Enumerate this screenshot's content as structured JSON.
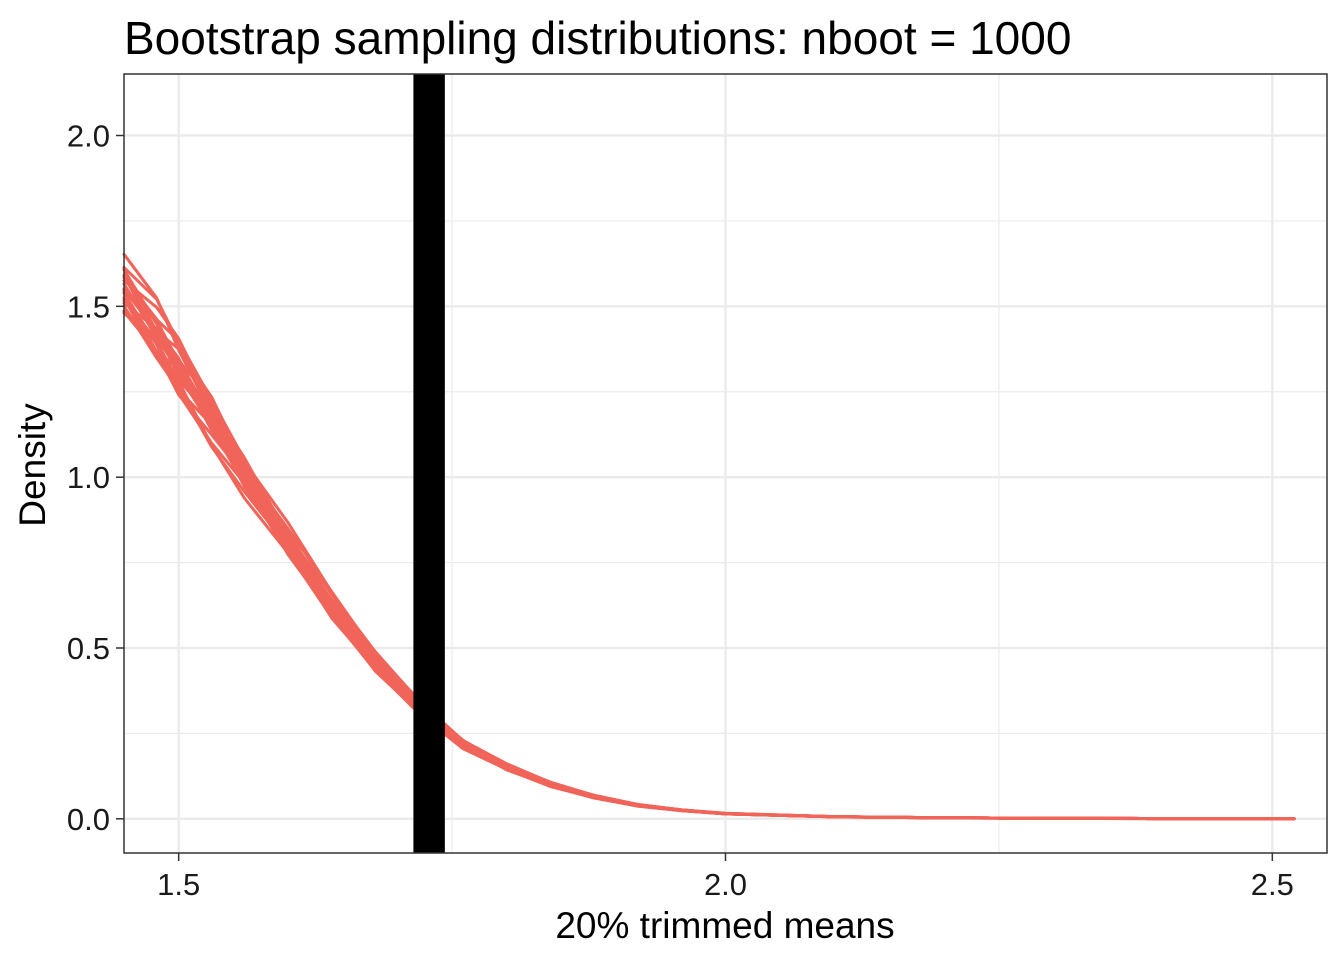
{
  "chart_data": {
    "type": "line",
    "title": "Bootstrap sampling distributions: nboot = 1000",
    "xlabel": "20% trimmed means",
    "ylabel": "Density",
    "xlim": [
      1.45,
      2.55
    ],
    "ylim": [
      -0.1,
      2.18
    ],
    "x_ticks": [
      1.5,
      2.0,
      2.5
    ],
    "x_tick_labels": [
      "1.5",
      "2.0",
      "2.5"
    ],
    "y_ticks": [
      0.0,
      0.5,
      1.0,
      1.5,
      2.0
    ],
    "y_tick_labels": [
      "0.0",
      "0.5",
      "1.0",
      "1.5",
      "2.0"
    ],
    "grid": true,
    "legend": "none",
    "colors": {
      "curves": "#f0645a",
      "vlines": "#000000",
      "grid": "#ebebeb",
      "panel_border": "#333333"
    },
    "series_style": "20 overlaid density curves of bootstrap 20% trimmed means",
    "density_x": [
      1.45,
      1.48,
      1.5,
      1.53,
      1.56,
      1.6,
      1.64,
      1.68,
      1.72,
      1.76,
      1.8,
      1.84,
      1.88,
      1.92,
      1.96,
      2.0,
      2.1,
      2.2,
      2.3,
      2.4,
      2.52
    ],
    "density_y": [
      1.55,
      1.42,
      1.32,
      1.17,
      1.01,
      0.81,
      0.62,
      0.46,
      0.33,
      0.22,
      0.15,
      0.1,
      0.065,
      0.04,
      0.025,
      0.015,
      0.006,
      0.003,
      0.0015,
      0.0008,
      0.0002
    ],
    "vlines_x": [
      1.716,
      1.718,
      1.72,
      1.722,
      1.724,
      1.726,
      1.728,
      1.73,
      1.732,
      1.734,
      1.736,
      1.738,
      1.74,
      1.742
    ]
  }
}
